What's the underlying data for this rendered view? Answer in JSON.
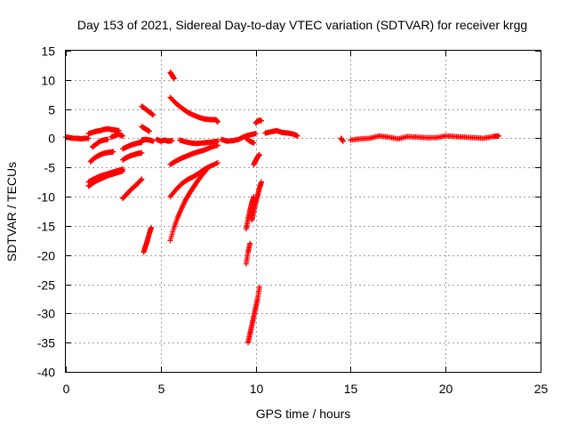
{
  "chart_data": {
    "type": "scatter",
    "title": "Day 153 of 2021, Sidereal Day-to-day VTEC variation (SDTVAR) for receiver krgg",
    "xlabel": "GPS time / hours",
    "ylabel": "SDTVAR / TECUs",
    "xlim": [
      0,
      25
    ],
    "ylim": [
      -40,
      15
    ],
    "xticks": [
      0,
      5,
      10,
      15,
      20,
      25
    ],
    "yticks": [
      15,
      10,
      5,
      0,
      -5,
      -10,
      -15,
      -20,
      -25,
      -30,
      -35,
      -40
    ],
    "grid": true,
    "marker": "plus",
    "color": "#ff0000",
    "segments": [
      {
        "x": [
          0.0,
          0.2,
          0.4,
          0.6,
          0.8,
          1.0,
          1.2
        ],
        "y": [
          0.2,
          0.1,
          0.0,
          0.0,
          -0.1,
          0.0,
          0.0
        ]
      },
      {
        "x": [
          1.2,
          1.4,
          1.6,
          1.8,
          2.0,
          2.2,
          2.4,
          2.6,
          2.8
        ],
        "y": [
          0.8,
          1.0,
          1.2,
          1.3,
          1.5,
          1.6,
          1.5,
          1.4,
          1.3
        ]
      },
      {
        "x": [
          1.4,
          1.6,
          1.8,
          2.0,
          2.2
        ],
        "y": [
          -1.5,
          -1.0,
          -0.5,
          -0.3,
          -0.2
        ]
      },
      {
        "x": [
          2.4,
          2.6,
          2.8,
          3.0
        ],
        "y": [
          0.2,
          0.5,
          0.7,
          0.4
        ]
      },
      {
        "x": [
          1.3,
          1.5,
          1.7,
          1.9,
          2.1,
          2.3,
          2.5
        ],
        "y": [
          -4.0,
          -3.4,
          -3.0,
          -2.7,
          -2.5,
          -2.4,
          -2.3
        ]
      },
      {
        "x": [
          1.2,
          1.4,
          1.6,
          1.8,
          2.0,
          2.2,
          2.4,
          2.6,
          2.8,
          3.0
        ],
        "y": [
          -8.2,
          -7.7,
          -7.3,
          -7.0,
          -6.7,
          -6.4,
          -6.2,
          -6.0,
          -5.8,
          -5.6
        ]
      },
      {
        "x": [
          1.2,
          1.4,
          1.6,
          1.8,
          2.0,
          2.2,
          2.4,
          2.6,
          2.8,
          3.0
        ],
        "y": [
          -7.5,
          -7.1,
          -6.8,
          -6.5,
          -6.3,
          -6.1,
          -5.9,
          -5.7,
          -5.5,
          -5.3
        ]
      },
      {
        "x": [
          3.0,
          3.2,
          3.4,
          3.6,
          3.8,
          4.0
        ],
        "y": [
          -1.8,
          -1.5,
          -1.2,
          -1.0,
          -0.8,
          -0.7
        ]
      },
      {
        "x": [
          3.0,
          3.2,
          3.4,
          3.6,
          3.8,
          4.0
        ],
        "y": [
          -3.7,
          -3.3,
          -3.0,
          -2.8,
          -2.6,
          -2.5
        ]
      },
      {
        "x": [
          3.0,
          3.2,
          3.4,
          3.6,
          3.8,
          4.0
        ],
        "y": [
          -10.3,
          -9.6,
          -8.9,
          -8.3,
          -7.7,
          -7.0
        ]
      },
      {
        "x": [
          4.0,
          4.2,
          4.4,
          4.6
        ],
        "y": [
          5.5,
          5.0,
          4.5,
          4.0
        ]
      },
      {
        "x": [
          4.0,
          4.2,
          4.4
        ],
        "y": [
          2.0,
          1.6,
          1.2
        ]
      },
      {
        "x": [
          4.0,
          4.2,
          4.4,
          4.6
        ],
        "y": [
          -0.3,
          -0.2,
          -0.3,
          -0.5
        ]
      },
      {
        "x": [
          4.1,
          4.2,
          4.3,
          4.4,
          4.5
        ],
        "y": [
          -19.5,
          -18.5,
          -17.5,
          -16.3,
          -15.3
        ]
      },
      {
        "x": [
          4.8,
          5.0,
          5.2,
          5.4,
          5.6
        ],
        "y": [
          -0.2,
          -0.5,
          -0.3,
          -0.5,
          -0.4
        ]
      },
      {
        "x": [
          5.5,
          5.6,
          5.7
        ],
        "y": [
          11.3,
          10.8,
          10.2
        ]
      },
      {
        "x": [
          5.5,
          5.8,
          6.1,
          6.4,
          6.7,
          7.0,
          7.3,
          7.6,
          7.9,
          8.0
        ],
        "y": [
          7.0,
          6.0,
          5.2,
          4.5,
          4.0,
          3.6,
          3.3,
          3.2,
          3.2,
          2.8
        ]
      },
      {
        "x": [
          6.0,
          6.3,
          6.6,
          6.9,
          7.2,
          7.5,
          7.8,
          8.0
        ],
        "y": [
          -0.3,
          -0.6,
          -0.8,
          -0.9,
          -0.8,
          -0.7,
          -0.6,
          -0.5
        ]
      },
      {
        "x": [
          5.5,
          5.8,
          6.1,
          6.4,
          6.7,
          7.0,
          7.3,
          7.6,
          8.0
        ],
        "y": [
          -4.5,
          -3.9,
          -3.4,
          -3.0,
          -2.6,
          -2.3,
          -2.0,
          -1.6,
          -1.2
        ]
      },
      {
        "x": [
          5.5,
          5.8,
          6.1,
          6.4,
          6.7,
          7.0,
          7.3,
          7.6,
          8.0
        ],
        "y": [
          -10.0,
          -8.8,
          -7.8,
          -7.1,
          -6.6,
          -6.0,
          -5.3,
          -4.8,
          -4.2
        ]
      },
      {
        "x": [
          5.5,
          5.7,
          5.9,
          6.1,
          6.3,
          6.5,
          6.7,
          6.9,
          7.1,
          7.3,
          7.5
        ],
        "y": [
          -17.5,
          -15.3,
          -13.5,
          -12.0,
          -10.6,
          -9.5,
          -8.5,
          -7.5,
          -6.6,
          -5.8,
          -5.0
        ]
      },
      {
        "x": [
          8.2,
          8.5,
          8.8,
          9.1,
          9.4,
          9.7,
          10.0
        ],
        "y": [
          -0.2,
          -0.5,
          -0.4,
          -0.2,
          0.3,
          0.6,
          0.8
        ]
      },
      {
        "x": [
          9.5,
          9.7,
          9.9
        ],
        "y": [
          0.0,
          -0.5,
          -0.8
        ]
      },
      {
        "x": [
          9.5,
          9.6,
          9.7,
          9.8,
          9.9
        ],
        "y": [
          -15.5,
          -13.8,
          -12.3,
          -11.0,
          -10.0
        ]
      },
      {
        "x": [
          9.5,
          9.6,
          9.7
        ],
        "y": [
          -21.5,
          -19.5,
          -18.0
        ]
      },
      {
        "x": [
          9.6,
          9.7,
          9.8,
          9.9,
          10.0,
          10.1,
          10.2
        ],
        "y": [
          -35.0,
          -33.5,
          -32.0,
          -30.5,
          -29.0,
          -27.5,
          -25.5
        ]
      },
      {
        "x": [
          9.8,
          9.9,
          10.0,
          10.1,
          10.2,
          10.3
        ],
        "y": [
          -14.0,
          -12.5,
          -11.0,
          -9.8,
          -8.5,
          -7.5
        ]
      },
      {
        "x": [
          9.9,
          10.0,
          10.1,
          10.2
        ],
        "y": [
          -4.5,
          -3.8,
          -3.2,
          -2.8
        ]
      },
      {
        "x": [
          10.0,
          10.1,
          10.2,
          10.3
        ],
        "y": [
          2.6,
          2.9,
          3.1,
          3.0
        ]
      },
      {
        "x": [
          10.5,
          10.8,
          11.1,
          11.4,
          11.7,
          12.0,
          12.2
        ],
        "y": [
          0.9,
          1.1,
          1.3,
          1.0,
          0.9,
          0.7,
          0.4
        ]
      },
      {
        "x": [
          14.5,
          14.6
        ],
        "y": [
          0.0,
          -0.5
        ]
      },
      {
        "x": [
          15.0,
          15.5,
          16.0,
          16.5,
          17.0,
          17.5,
          18.0,
          18.5,
          19.0,
          19.5,
          20.0,
          20.5,
          21.0,
          21.5,
          22.0,
          22.5,
          22.8
        ],
        "y": [
          -0.3,
          -0.1,
          0.0,
          0.4,
          0.2,
          -0.1,
          0.3,
          0.2,
          0.1,
          0.1,
          0.4,
          0.3,
          0.2,
          0.1,
          0.0,
          0.3,
          0.4
        ]
      }
    ]
  }
}
